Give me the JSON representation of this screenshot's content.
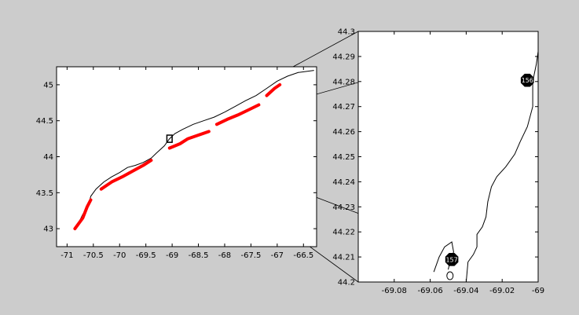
{
  "figure": {
    "background_color": "#cccccc",
    "axes_color": "#ffffff",
    "coastline_color": "#000000",
    "track_color": "#ff0000",
    "marker_color": "#000000",
    "marker_text_color": "#ffffff"
  },
  "chart_data": [
    {
      "type": "map",
      "name": "overview-map",
      "xlim": [
        -71.2,
        -66.25
      ],
      "ylim": [
        42.75,
        45.25
      ],
      "x_ticks": [
        -71,
        -70.5,
        -70,
        -69.5,
        -69,
        -68.5,
        -68,
        -67.5,
        -67,
        -66.5
      ],
      "x_tick_labels": [
        "-71",
        "-70.5",
        "-70",
        "-69.5",
        "-69",
        "-68.5",
        "-68",
        "-67.5",
        "-67",
        "-66.5"
      ],
      "y_ticks": [
        43,
        43.5,
        44,
        44.5,
        45
      ],
      "y_tick_labels": [
        "43",
        "43.5",
        "44",
        "44.5",
        "45"
      ],
      "grid": false,
      "inset_box": {
        "x_range": [
          -69.1,
          -69.0
        ],
        "y_range": [
          44.2,
          44.3
        ]
      },
      "coastline": [
        [
          -70.8,
          43.05
        ],
        [
          -70.7,
          43.2
        ],
        [
          -70.6,
          43.3
        ],
        [
          -70.55,
          43.45
        ],
        [
          -70.45,
          43.55
        ],
        [
          -70.3,
          43.65
        ],
        [
          -70.15,
          43.72
        ],
        [
          -70.0,
          43.78
        ],
        [
          -69.85,
          43.85
        ],
        [
          -69.7,
          43.88
        ],
        [
          -69.55,
          43.92
        ],
        [
          -69.4,
          43.98
        ],
        [
          -69.3,
          44.05
        ],
        [
          -69.15,
          44.15
        ],
        [
          -69.05,
          44.25
        ],
        [
          -68.95,
          44.32
        ],
        [
          -68.8,
          44.38
        ],
        [
          -68.6,
          44.45
        ],
        [
          -68.4,
          44.5
        ],
        [
          -68.2,
          44.55
        ],
        [
          -68.0,
          44.62
        ],
        [
          -67.8,
          44.7
        ],
        [
          -67.6,
          44.78
        ],
        [
          -67.4,
          44.85
        ],
        [
          -67.2,
          44.95
        ],
        [
          -67.0,
          45.05
        ],
        [
          -66.8,
          45.12
        ],
        [
          -66.6,
          45.17
        ],
        [
          -66.3,
          45.2
        ]
      ],
      "tracks": [
        [
          [
            -70.85,
            43.0
          ],
          [
            -70.7,
            43.15
          ],
          [
            -70.62,
            43.3
          ],
          [
            -70.55,
            43.4
          ]
        ],
        [
          [
            -70.35,
            43.55
          ],
          [
            -70.15,
            43.65
          ],
          [
            -69.95,
            43.72
          ],
          [
            -69.75,
            43.8
          ],
          [
            -69.55,
            43.88
          ],
          [
            -69.4,
            43.95
          ]
        ],
        [
          [
            -69.05,
            44.12
          ],
          [
            -68.85,
            44.18
          ],
          [
            -68.7,
            44.25
          ],
          [
            -68.5,
            44.3
          ],
          [
            -68.3,
            44.35
          ]
        ],
        [
          [
            -68.15,
            44.45
          ],
          [
            -67.95,
            44.52
          ],
          [
            -67.75,
            44.58
          ],
          [
            -67.55,
            44.65
          ],
          [
            -67.35,
            44.72
          ]
        ],
        [
          [
            -67.2,
            44.85
          ],
          [
            -67.05,
            44.95
          ],
          [
            -66.95,
            45.0
          ]
        ]
      ]
    },
    {
      "type": "map",
      "name": "inset-map",
      "xlim": [
        -69.1,
        -69.0
      ],
      "ylim": [
        44.2,
        44.3
      ],
      "x_ticks": [
        -69.08,
        -69.06,
        -69.04,
        -69.02,
        -69
      ],
      "x_tick_labels": [
        "-69.08",
        "-69.06",
        "-69.04",
        "-69.02",
        "-69"
      ],
      "y_ticks": [
        44.2,
        44.21,
        44.22,
        44.23,
        44.24,
        44.25,
        44.26,
        44.27,
        44.28,
        44.29,
        44.3
      ],
      "y_tick_labels": [
        "44.2",
        "44.21",
        "44.22",
        "44.23",
        "44.24",
        "44.25",
        "44.26",
        "44.27",
        "44.28",
        "44.29",
        "44.3"
      ],
      "grid": false,
      "coastline": [
        [
          -69.0,
          44.292
        ],
        [
          -69.001,
          44.287
        ],
        [
          -69.003,
          44.28
        ],
        [
          -69.003,
          44.27
        ],
        [
          -69.006,
          44.262
        ],
        [
          -69.01,
          44.256
        ],
        [
          -69.013,
          44.251
        ],
        [
          -69.018,
          44.246
        ],
        [
          -69.023,
          44.242
        ],
        [
          -69.026,
          44.238
        ],
        [
          -69.028,
          44.232
        ],
        [
          -69.029,
          44.226
        ],
        [
          -69.031,
          44.222
        ],
        [
          -69.034,
          44.219
        ],
        [
          -69.034,
          44.214
        ],
        [
          -69.036,
          44.211
        ],
        [
          -69.039,
          44.208
        ],
        [
          -69.04,
          44.2
        ]
      ],
      "south_shore": [
        [
          -69.058,
          44.204
        ],
        [
          -69.055,
          44.21
        ],
        [
          -69.052,
          44.214
        ],
        [
          -69.048,
          44.216
        ],
        [
          -69.047,
          44.212
        ],
        [
          -69.049,
          44.208
        ],
        [
          -69.05,
          44.205
        ]
      ],
      "islet": {
        "x": -69.049,
        "y": 44.2025
      },
      "markers": [
        {
          "label": "156",
          "x": -69.006,
          "y": 44.2805
        },
        {
          "label": "157",
          "x": -69.048,
          "y": 44.209
        }
      ]
    }
  ]
}
